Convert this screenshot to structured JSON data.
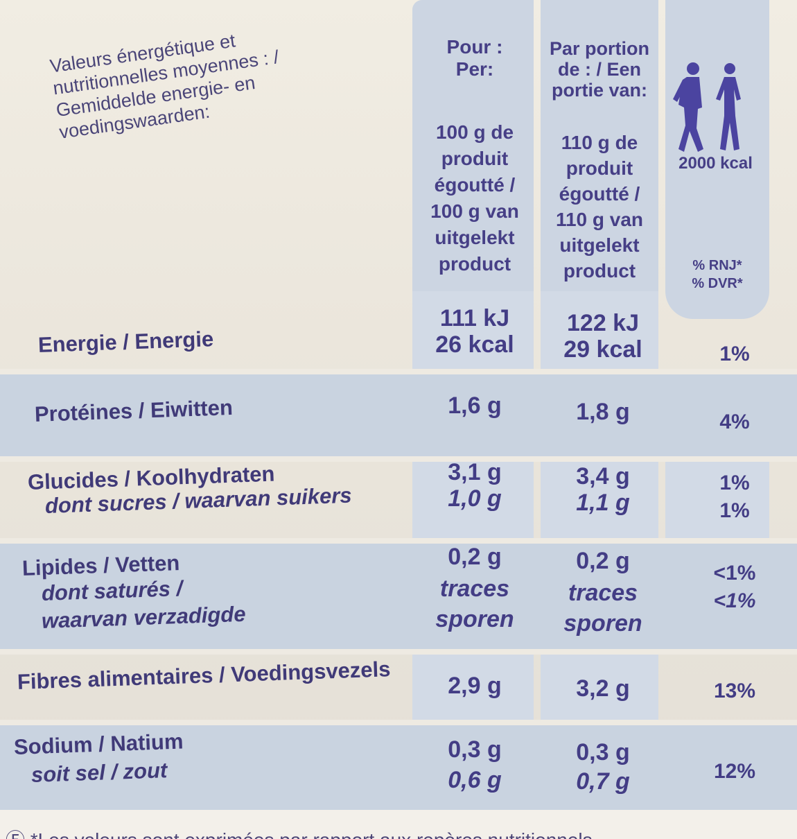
{
  "header": {
    "title": "Valeurs énergétique et\nnutritionnelles moyennes : /\nGemiddelde energie- en\nvoedingswaarden:",
    "per_label": "Pour :\nPer:",
    "portion_label": "Par portion\nde : / Een\nportie van:",
    "per_100": "100 g de\nproduit\négoutté /\n100 g van\nuitgelekt\nproduct",
    "per_110": "110 g de\nproduit\négoutté /\n110 g van\nuitgelekt\nproduct",
    "reference_kcal": "2000 kcal",
    "rnj_label": "% RNJ*\n% DVR*"
  },
  "rows": {
    "energy": {
      "label": "Energie / Energie",
      "v100": "111 kJ\n26 kcal",
      "v110": "122 kJ\n29 kcal",
      "pct": "1%"
    },
    "protein": {
      "label": "Protéines / Eiwitten",
      "v100": "1,6 g",
      "v110": "1,8 g",
      "pct": "4%"
    },
    "carbs": {
      "label": "Glucides / Koolhydraten",
      "v100": "3,1 g",
      "v110": "3,4 g",
      "pct": "1%"
    },
    "sugars": {
      "label": "dont sucres / waarvan suikers",
      "v100": "1,0 g",
      "v110": "1,1 g",
      "pct": "1%"
    },
    "fat": {
      "label": "Lipides / Vetten",
      "v100": "0,2 g",
      "v110": "0,2 g",
      "pct": "<1%"
    },
    "saturated": {
      "label_fr": "dont saturés /",
      "label_nl": "waarvan verzadigde",
      "v100_a": "traces",
      "v100_b": "sporen",
      "v110_a": "traces",
      "v110_b": "sporen",
      "pct": "<1%"
    },
    "fibre": {
      "label": "Fibres alimentaires / Voedingsvezels",
      "v100": "2,9 g",
      "v110": "3,2 g",
      "pct": "13%"
    },
    "sodium": {
      "label": "Sodium / Natium",
      "v100": "0,3 g",
      "v110": "0,3 g"
    },
    "salt": {
      "label": "soit sel / zout",
      "v100": "0,6 g",
      "v110": "0,7 g",
      "pct": "12%"
    }
  },
  "footer": {
    "text": "Ⓕ *Les valeurs sont exprimées par rapport aux repères nutritionnels"
  },
  "colors": {
    "text": "#403a78",
    "column_shade": "#ccd5e2",
    "row_shade": "#c9d3e0"
  },
  "icons": {
    "people": "walking-people-icon"
  }
}
